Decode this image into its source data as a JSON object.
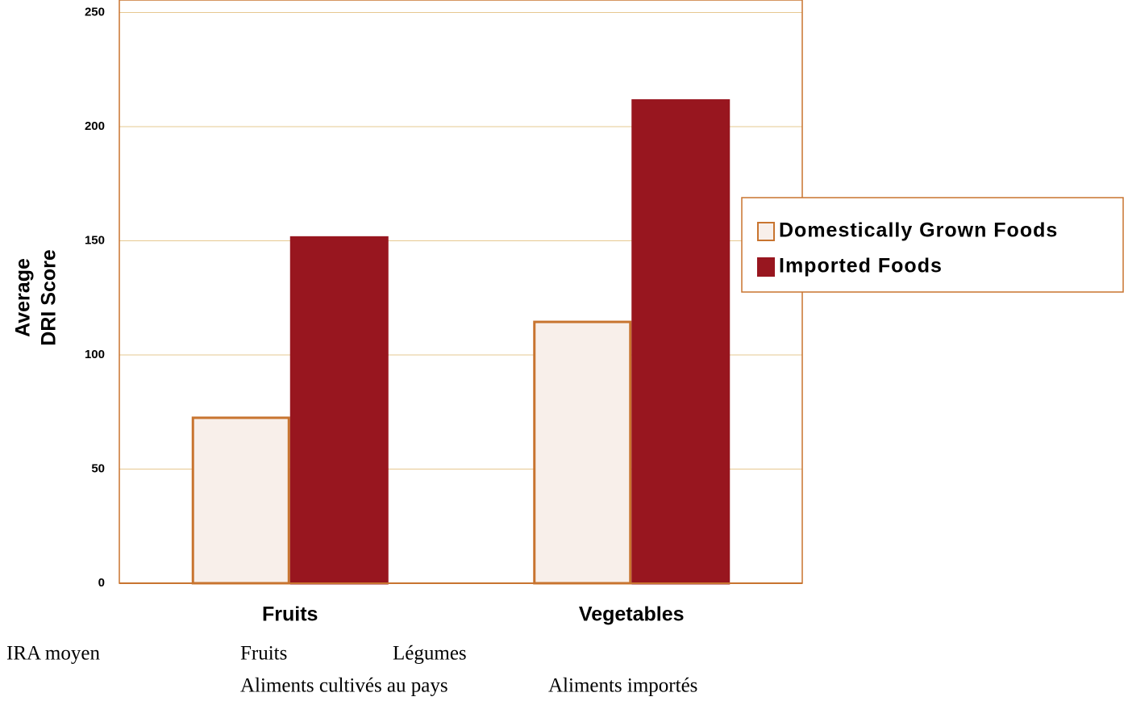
{
  "chart_data": {
    "type": "bar",
    "y_label": [
      "Average",
      "DRI Score"
    ],
    "categories": [
      "Fruits",
      "Vegetables"
    ],
    "series": [
      {
        "name": "Domestically Grown Foods",
        "color": "#f8efea",
        "edge": "#c8742f",
        "values": [
          73,
          115
        ]
      },
      {
        "name": "Imported Foods",
        "color": "#98161f",
        "edge": "#98161f",
        "values": [
          152,
          212
        ]
      }
    ],
    "ylim": [
      0,
      250
    ],
    "yticks": [
      0,
      50,
      100,
      150,
      200,
      250
    ],
    "grid": true,
    "legend": "right"
  },
  "translation": {
    "y_label": "IRA moyen",
    "categories": [
      "Fruits",
      "Légumes"
    ],
    "series": [
      "Aliments cultivés au pays",
      "Aliments importés"
    ]
  }
}
